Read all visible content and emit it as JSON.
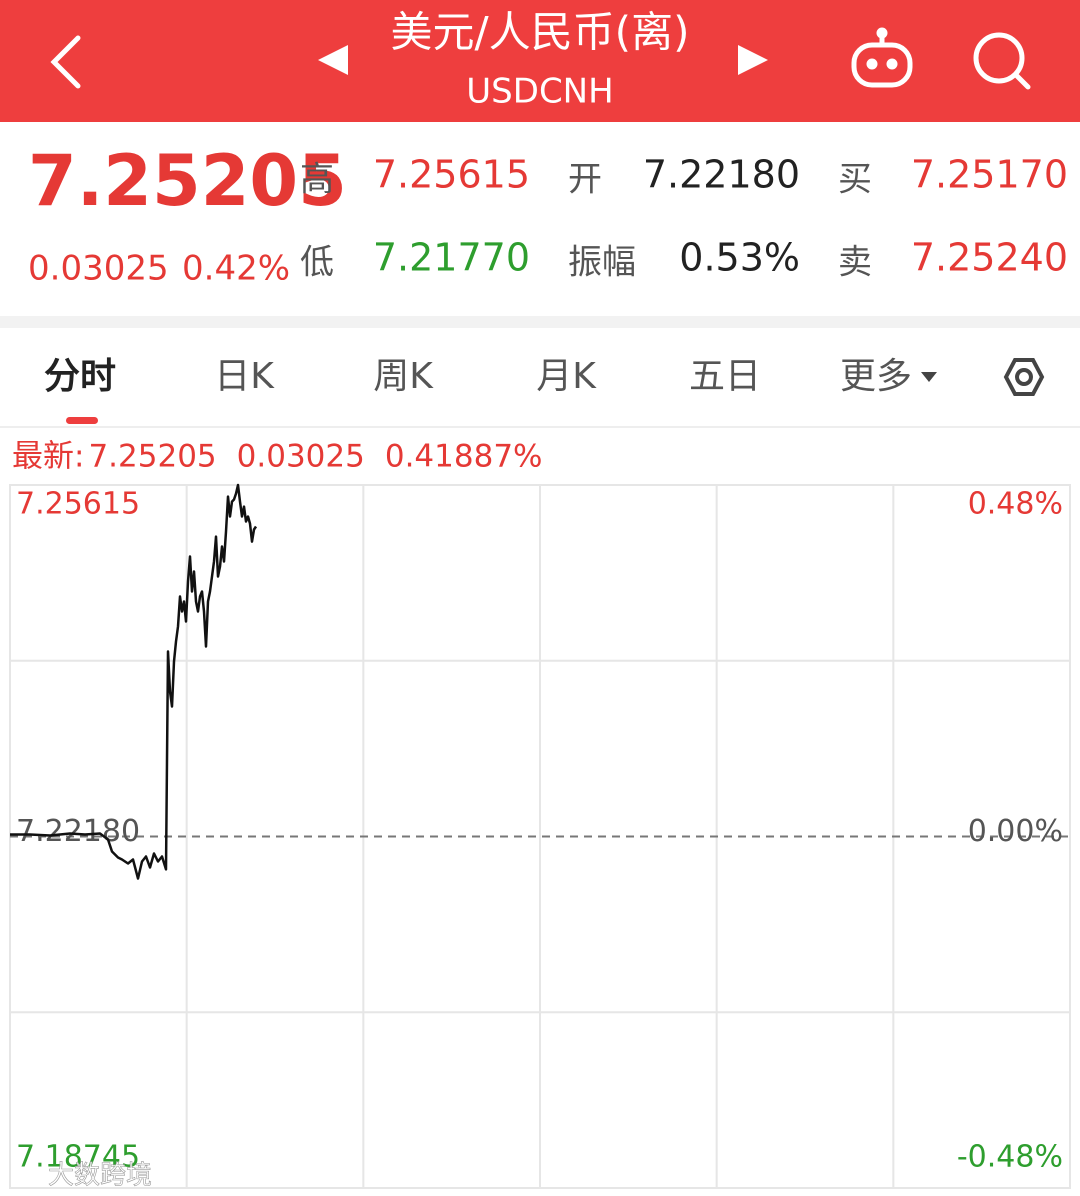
{
  "header": {
    "title": "美元/人民币(离)",
    "code": "USDCNH"
  },
  "quote": {
    "price": "7.25205",
    "change": "0.03025",
    "change_pct": "0.42%",
    "stats": [
      {
        "label": "高",
        "value": "7.25615"
      },
      {
        "label": "开",
        "value": "7.22180"
      },
      {
        "label": "买",
        "value": "7.25170"
      },
      {
        "label": "低",
        "value": "7.21770"
      },
      {
        "label": "振幅",
        "value": "0.53%"
      },
      {
        "label": "卖",
        "value": "7.25240"
      }
    ]
  },
  "tabs": [
    "分时",
    "日K",
    "周K",
    "月K",
    "五日",
    "更多"
  ],
  "watermark": "大数跨境",
  "chart_data": {
    "type": "line",
    "info": [
      "最新:",
      "7.25205",
      "0.03025",
      "0.41887%"
    ],
    "color": "#111111",
    "x": [
      0,
      10,
      20,
      30,
      37.5,
      45,
      49,
      51,
      54,
      56,
      59,
      61.5,
      64,
      66,
      68,
      70,
      72,
      74,
      76,
      78,
      79,
      80,
      81,
      82,
      83,
      84,
      85,
      86,
      87,
      88,
      89,
      90,
      91,
      92,
      93,
      94,
      95,
      96,
      97,
      98,
      99,
      100,
      101,
      102,
      103,
      104,
      105,
      106,
      107,
      108,
      109,
      110,
      111,
      112,
      113,
      114,
      115,
      116,
      117,
      118,
      119,
      120,
      121,
      122,
      123
    ],
    "values": [
      7.222,
      7.222,
      7.2219,
      7.22209,
      7.222,
      7.22209,
      7.22151,
      7.22033,
      7.21975,
      7.21955,
      7.21916,
      7.21955,
      7.2177,
      7.21936,
      7.21985,
      7.21877,
      7.22014,
      7.21936,
      7.21985,
      7.21858,
      7.23988,
      7.23597,
      7.2345,
      7.2389,
      7.24086,
      7.24232,
      7.24525,
      7.24379,
      7.24477,
      7.24281,
      7.24672,
      7.24916,
      7.24574,
      7.2477,
      7.24477,
      7.24379,
      7.24525,
      7.24574,
      7.24379,
      7.24037,
      7.24477,
      7.24574,
      7.24721,
      7.24867,
      7.25111,
      7.24721,
      7.24818,
      7.25014,
      7.24867,
      7.2516,
      7.25502,
      7.25307,
      7.25453,
      7.25473,
      7.25531,
      7.25615,
      7.25453,
      7.25307,
      7.25404,
      7.25258,
      7.25307,
      7.25238,
      7.25062,
      7.2518,
      7.25209
    ],
    "xlim": [
      0,
      530
    ],
    "ylim": [
      7.18745,
      7.25615
    ],
    "yticks": [
      7.25615,
      {
        "value": 7.2218,
        "label": "7.22180"
      },
      7.18745
    ],
    "y2lim": [
      -0.48,
      0.48
    ],
    "y2ticks": [
      {
        "value": 0.48,
        "label": "0.48%"
      },
      {
        "value": 0,
        "label": "0.00%"
      },
      {
        "value": -0.48,
        "label": "-0.48%"
      }
    ]
  }
}
